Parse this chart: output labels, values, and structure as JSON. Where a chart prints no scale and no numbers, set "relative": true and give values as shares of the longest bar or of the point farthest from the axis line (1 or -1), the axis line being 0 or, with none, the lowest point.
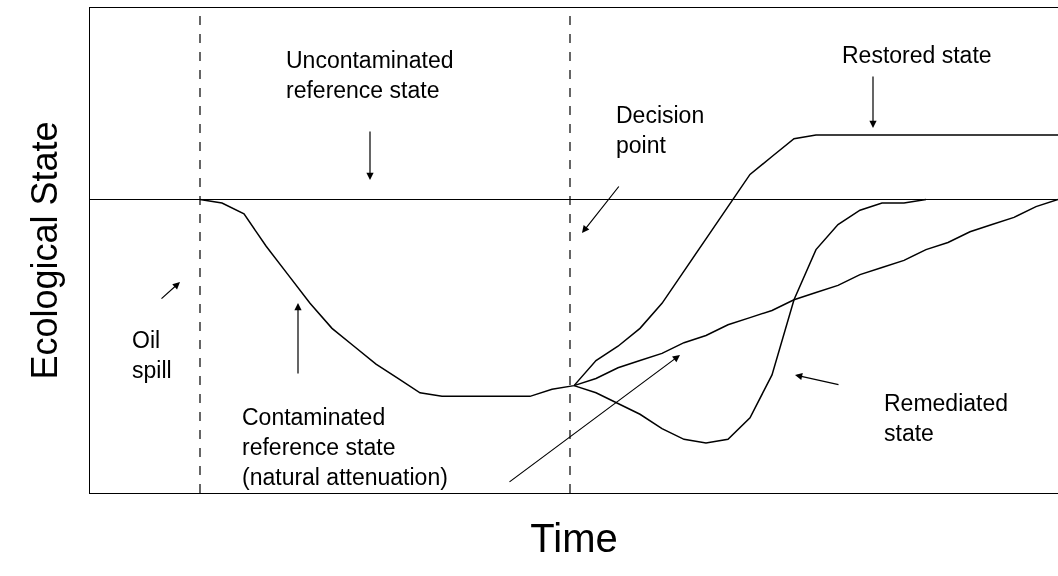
{
  "chart_data": {
    "type": "line",
    "relative": true,
    "xlabel": "Time",
    "ylabel": "Ecological State",
    "categories": [
      null,
      null,
      null,
      null,
      null,
      null,
      null,
      null,
      null,
      null,
      null,
      null,
      null,
      null,
      null,
      null,
      null,
      null,
      null,
      null,
      null,
      null,
      null,
      null,
      null,
      null,
      null,
      null,
      null,
      null,
      null,
      null,
      null,
      null,
      null,
      null,
      null,
      null,
      null,
      null,
      null,
      null,
      null,
      null,
      null
    ],
    "series": [
      {
        "color": "#000000",
        "values": [
          null,
          null,
          null,
          null,
          null,
          0.82,
          0.81,
          0.78,
          0.69,
          0.61,
          0.53,
          0.46,
          0.41,
          0.36,
          0.32,
          0.28,
          0.27,
          0.27,
          0.27,
          0.27,
          0.27,
          0.29,
          0.3,
          0.32,
          0.35,
          0.37,
          0.39,
          0.42,
          0.44,
          0.47,
          0.49,
          0.51,
          0.54,
          0.56,
          0.58,
          0.61,
          0.63,
          0.65,
          0.68,
          0.7,
          0.73,
          0.75,
          0.77,
          0.8,
          0.82
        ]
      },
      {
        "color": "#000000",
        "values": [
          null,
          null,
          null,
          null,
          null,
          null,
          null,
          null,
          null,
          null,
          null,
          null,
          null,
          null,
          null,
          null,
          null,
          null,
          null,
          null,
          null,
          null,
          0.3,
          0.37,
          0.41,
          0.46,
          0.53,
          0.62,
          0.71,
          0.8,
          0.89,
          0.94,
          0.99,
          1.0,
          1.0,
          1.0,
          1.0,
          1.0,
          1.0,
          1.0,
          1.0,
          1.0,
          1.0,
          1.0,
          1.0
        ]
      },
      {
        "color": "#000000",
        "values": [
          null,
          null,
          null,
          null,
          null,
          null,
          null,
          null,
          null,
          null,
          null,
          null,
          null,
          null,
          null,
          null,
          null,
          null,
          null,
          null,
          null,
          null,
          0.3,
          0.28,
          0.25,
          0.22,
          0.18,
          0.15,
          0.14,
          0.15,
          0.21,
          0.33,
          0.54,
          0.68,
          0.75,
          0.79,
          0.81,
          0.81,
          0.82,
          null,
          null,
          null,
          null,
          null,
          null
        ]
      }
    ],
    "ref_lines": [
      {
        "axis": "y",
        "value": 0.82,
        "color": "#000000",
        "line_style": "solid"
      }
    ],
    "annotations": [
      "Uncontaminated\nreference state",
      "Restored state",
      "Decision\npoint",
      "Oil\nspill",
      "Contaminated\nreference state\n(natural attenuation)",
      "Remediated\nstate"
    ],
    "marker": "none",
    "line_style": "solid"
  }
}
